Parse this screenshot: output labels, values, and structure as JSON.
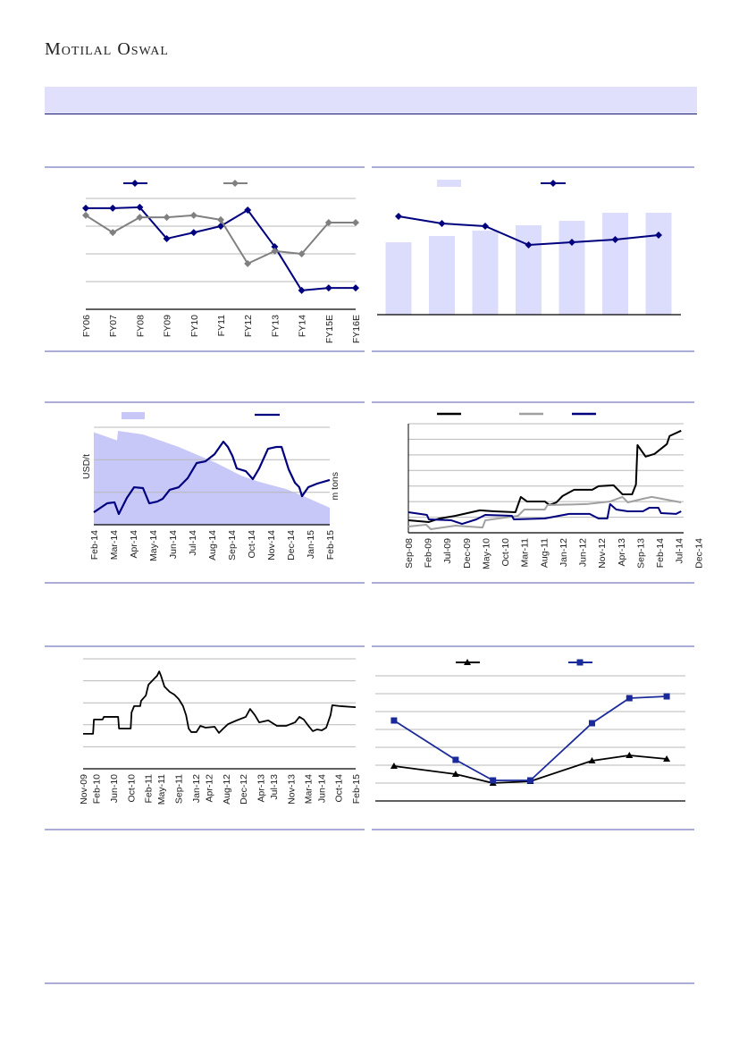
{
  "header": {
    "brand": "Motilal Oswal"
  },
  "colors": {
    "navy": "#00007f",
    "grey": "#808080",
    "black": "#000000",
    "bar": "#dcdcfc",
    "area": "#c8c8f8",
    "rule": "#5a5ab0",
    "band": "#e0e0fc",
    "blue": "#1a2a9a"
  },
  "chart_data": [
    {
      "type": "line",
      "categories": [
        "FY06",
        "FY07",
        "FY08",
        "FY09",
        "FY10",
        "FY11",
        "FY12",
        "FY13",
        "FY14",
        "FY15E",
        "FY16E"
      ],
      "ylim": [
        0,
        4
      ],
      "grid": true,
      "legend": "top",
      "series": [
        {
          "name": "",
          "color": "#00007f",
          "marker": "diamond",
          "values": [
            3.65,
            3.65,
            3.68,
            2.55,
            2.77,
            3.0,
            3.58,
            2.26,
            0.68,
            0.77,
            0.77
          ]
        },
        {
          "name": "",
          "color": "#808080",
          "marker": "diamond",
          "values": [
            3.39,
            2.77,
            3.32,
            3.32,
            3.39,
            3.23,
            1.65,
            2.1,
            2.0,
            3.13,
            3.13
          ]
        }
      ]
    },
    {
      "type": "bar",
      "categories": [
        "",
        "",
        "",
        "",
        "",
        "",
        ""
      ],
      "ylim": [
        0,
        130
      ],
      "legend": "top",
      "bars": {
        "name": "",
        "values": [
          81,
          88,
          94,
          100,
          105,
          114,
          114
        ]
      },
      "line": {
        "name": "",
        "values": [
          110,
          102,
          99,
          78,
          81,
          84,
          89
        ]
      }
    },
    {
      "type": "area",
      "x_tick_labels": [
        "Feb-14",
        "Mar-14",
        "Apr-14",
        "May-14",
        "Jun-14",
        "Jul-14",
        "Aug-14",
        "Sep-14",
        "Oct-14",
        "Nov-14",
        "Dec-14",
        "Jan-15",
        "Feb-15"
      ],
      "ylabel": "USD/t",
      "y2label": "m tons",
      "ylim": [
        0,
        100
      ],
      "xlim": [
        0,
        12
      ],
      "legend": "top",
      "area": {
        "name": "",
        "points": [
          [
            0,
            94.9
          ],
          [
            1.18,
            86.6
          ],
          [
            1.23,
            96.3
          ],
          [
            2.5,
            92.7
          ],
          [
            4.32,
            79.8
          ],
          [
            6.14,
            64.2
          ],
          [
            7.5,
            50.4
          ],
          [
            8.41,
            44
          ],
          [
            9.77,
            36.7
          ],
          [
            10.68,
            29.3
          ],
          [
            12,
            17.4
          ]
        ]
      },
      "line": {
        "name": "",
        "points": [
          [
            0,
            12.8
          ],
          [
            0.68,
            22
          ],
          [
            1.05,
            23
          ],
          [
            1.27,
            11
          ],
          [
            1.68,
            27.5
          ],
          [
            2.05,
            38.5
          ],
          [
            2.5,
            37.6
          ],
          [
            2.82,
            22
          ],
          [
            3.23,
            23.8
          ],
          [
            3.5,
            26.6
          ],
          [
            3.86,
            35.8
          ],
          [
            4.32,
            38.5
          ],
          [
            4.77,
            47.7
          ],
          [
            5.23,
            63.3
          ],
          [
            5.68,
            65.1
          ],
          [
            6.14,
            72.4
          ],
          [
            6.59,
            85.3
          ],
          [
            6.82,
            79.8
          ],
          [
            7.05,
            70.6
          ],
          [
            7.27,
            57.8
          ],
          [
            7.73,
            55
          ],
          [
            8.09,
            46.8
          ],
          [
            8.41,
            57.8
          ],
          [
            8.86,
            77.9
          ],
          [
            9.27,
            79.8
          ],
          [
            9.55,
            79.8
          ],
          [
            9.91,
            56.9
          ],
          [
            10.23,
            43.1
          ],
          [
            10.45,
            38.5
          ],
          [
            10.59,
            29.3
          ],
          [
            10.91,
            38.5
          ],
          [
            11.36,
            42.2
          ],
          [
            12,
            45.9
          ]
        ]
      }
    },
    {
      "type": "line",
      "x_tick_labels": [
        "Sep-08",
        "Feb-09",
        "Jul-09",
        "Dec-09",
        "May-10",
        "Oct-10",
        "Mar-11",
        "Aug-11",
        "Jan-12",
        "Jun-12",
        "Nov-12",
        "Apr-13",
        "Sep-13",
        "Feb-14",
        "Jul-14",
        "Dec-14"
      ],
      "xlim": [
        0,
        71
      ],
      "ylim": [
        0,
        7
      ],
      "grid": true,
      "legend": "top",
      "series": [
        {
          "name": "",
          "color": "#000000",
          "points": [
            [
              0,
              0.8
            ],
            [
              5.3,
              0.69
            ],
            [
              8.1,
              0.92
            ],
            [
              12.2,
              1.09
            ],
            [
              18.5,
              1.44
            ],
            [
              22.2,
              1.38
            ],
            [
              27.7,
              1.32
            ],
            [
              29.1,
              2.3
            ],
            [
              30.7,
              2.01
            ],
            [
              35.3,
              2.01
            ],
            [
              36.5,
              1.78
            ],
            [
              38.3,
              1.95
            ],
            [
              39.9,
              2.36
            ],
            [
              42.9,
              2.76
            ],
            [
              47.6,
              2.76
            ],
            [
              49.2,
              2.99
            ],
            [
              53.1,
              3.05
            ],
            [
              55.4,
              2.47
            ],
            [
              57.9,
              2.47
            ],
            [
              58.9,
              3.1
            ],
            [
              59.3,
              5.63
            ],
            [
              61.4,
              4.89
            ],
            [
              63.7,
              5.06
            ],
            [
              66.9,
              5.69
            ],
            [
              67.6,
              6.21
            ],
            [
              70.6,
              6.55
            ]
          ]
        },
        {
          "name": "",
          "color": "#a0a0a0",
          "points": [
            [
              0,
              0.4
            ],
            [
              4.6,
              0.52
            ],
            [
              5.8,
              0.23
            ],
            [
              12.2,
              0.46
            ],
            [
              19.2,
              0.34
            ],
            [
              19.9,
              0.8
            ],
            [
              28.4,
              1.09
            ],
            [
              30,
              1.49
            ],
            [
              35.3,
              1.49
            ],
            [
              36,
              1.78
            ],
            [
              46.2,
              1.84
            ],
            [
              52.2,
              2.01
            ],
            [
              55.4,
              2.3
            ],
            [
              56.8,
              1.95
            ],
            [
              60.7,
              2.18
            ],
            [
              63,
              2.3
            ],
            [
              70.6,
              1.95
            ]
          ]
        },
        {
          "name": "",
          "color": "#00007f",
          "points": [
            [
              0,
              1.32
            ],
            [
              4.8,
              1.15
            ],
            [
              5.3,
              0.86
            ],
            [
              11.1,
              0.8
            ],
            [
              13.9,
              0.57
            ],
            [
              17.6,
              0.86
            ],
            [
              19.9,
              1.15
            ],
            [
              26.8,
              1.09
            ],
            [
              27.3,
              0.86
            ],
            [
              35.3,
              0.92
            ],
            [
              41.6,
              1.21
            ],
            [
              46.9,
              1.21
            ],
            [
              49.2,
              0.92
            ],
            [
              51.5,
              0.92
            ],
            [
              52.2,
              1.84
            ],
            [
              53.8,
              1.49
            ],
            [
              56.8,
              1.38
            ],
            [
              60.7,
              1.38
            ],
            [
              62.4,
              1.61
            ],
            [
              64.7,
              1.61
            ],
            [
              65.4,
              1.26
            ],
            [
              69.3,
              1.21
            ],
            [
              70.6,
              1.38
            ]
          ]
        }
      ]
    },
    {
      "type": "line",
      "x_tick_labels": [
        "Nov-09",
        "Feb-10",
        "Jun-10",
        "Oct-10",
        "Feb-11",
        "May-11",
        "Sep-11",
        "Jan-12",
        "Apr-12",
        "Aug-12",
        "Dec-12",
        "Apr-13",
        "Jul-13",
        "Nov-13",
        "Mar-14",
        "Jun-14",
        "Oct-14",
        "Feb-15"
      ],
      "x_tick_months": [
        0,
        3,
        7,
        11,
        15,
        18,
        22,
        26,
        29,
        33,
        37,
        41,
        44,
        48,
        52,
        55,
        59,
        63
      ],
      "xlim": [
        0,
        63
      ],
      "ylim": [
        0,
        5
      ],
      "grid": true,
      "series": [
        {
          "name": "",
          "color": "#000000",
          "points": [
            [
              0,
              1.59
            ],
            [
              2.3,
              1.59
            ],
            [
              2.5,
              2.24
            ],
            [
              4.5,
              2.24
            ],
            [
              4.8,
              2.36
            ],
            [
              8.1,
              2.36
            ],
            [
              8.3,
              1.83
            ],
            [
              11,
              1.83
            ],
            [
              11.2,
              2.56
            ],
            [
              11.8,
              2.85
            ],
            [
              13.2,
              2.85
            ],
            [
              13.4,
              3.09
            ],
            [
              14.5,
              3.33
            ],
            [
              15.1,
              3.82
            ],
            [
              16.3,
              4.07
            ],
            [
              17.1,
              4.23
            ],
            [
              17.6,
              4.43
            ],
            [
              18,
              4.23
            ],
            [
              18.8,
              3.74
            ],
            [
              20,
              3.5
            ],
            [
              21.1,
              3.37
            ],
            [
              22.1,
              3.17
            ],
            [
              23.1,
              2.85
            ],
            [
              23.8,
              2.44
            ],
            [
              24.4,
              1.83
            ],
            [
              25,
              1.67
            ],
            [
              26.2,
              1.67
            ],
            [
              27.1,
              1.95
            ],
            [
              28.3,
              1.87
            ],
            [
              30.4,
              1.91
            ],
            [
              31.4,
              1.63
            ],
            [
              32.4,
              1.83
            ],
            [
              33.5,
              2.03
            ],
            [
              35.5,
              2.2
            ],
            [
              37.6,
              2.36
            ],
            [
              38.6,
              2.72
            ],
            [
              39.7,
              2.44
            ],
            [
              40.7,
              2.11
            ],
            [
              42.8,
              2.2
            ],
            [
              44.8,
              1.95
            ],
            [
              46.9,
              1.95
            ],
            [
              49,
              2.11
            ],
            [
              50,
              2.36
            ],
            [
              51,
              2.24
            ],
            [
              52.1,
              1.95
            ],
            [
              53.1,
              1.71
            ],
            [
              54.1,
              1.79
            ],
            [
              55.2,
              1.75
            ],
            [
              56.2,
              1.87
            ],
            [
              57.2,
              2.44
            ],
            [
              57.6,
              2.89
            ],
            [
              59.3,
              2.85
            ],
            [
              63,
              2.8
            ]
          ]
        }
      ]
    },
    {
      "type": "line",
      "x": [
        0,
        1.65,
        2.65,
        3.65,
        5.3,
        6.3,
        7.3
      ],
      "xlim": [
        -0.5,
        7.8
      ],
      "ylim": [
        0,
        7.2
      ],
      "grid": true,
      "legend": "top",
      "series": [
        {
          "name": "",
          "color": "#000000",
          "marker": "triangle",
          "values": [
            1.95,
            1.5,
            1.0,
            1.1,
            2.25,
            2.55,
            2.35
          ]
        },
        {
          "name": "",
          "color": "#1a2a9a",
          "marker": "square",
          "values": [
            4.5,
            2.3,
            1.15,
            1.15,
            4.35,
            5.75,
            5.85
          ]
        }
      ]
    }
  ]
}
